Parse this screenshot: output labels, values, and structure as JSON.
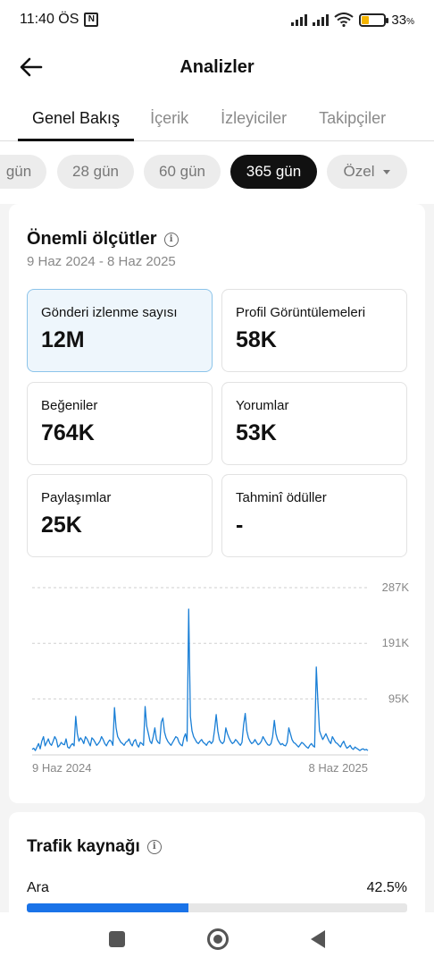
{
  "status_bar": {
    "time": "11:40 ÖS",
    "nfc_glyph": "N",
    "battery": "33",
    "battery_unit": "%"
  },
  "header": {
    "title": "Analizler"
  },
  "tabs": [
    {
      "label": "Genel Bakış",
      "active": true
    },
    {
      "label": "İçerik",
      "active": false
    },
    {
      "label": "İzleyiciler",
      "active": false
    },
    {
      "label": "Takipçiler",
      "active": false
    }
  ],
  "ranges": [
    {
      "label": "gün",
      "active": false
    },
    {
      "label": "28 gün",
      "active": false
    },
    {
      "label": "60 gün",
      "active": false
    },
    {
      "label": "365 gün",
      "active": true
    },
    {
      "label": "Özel",
      "active": false
    }
  ],
  "metrics": {
    "title": "Önemli ölçütler",
    "info_glyph": "i",
    "date_range": "9 Haz 2024 - 8 Haz 2025",
    "items": [
      {
        "label": "Gönderi izlenme sayısı",
        "value": "12M",
        "selected": true
      },
      {
        "label": "Profil Görüntülemeleri",
        "value": "58K",
        "selected": false
      },
      {
        "label": "Beğeniler",
        "value": "764K",
        "selected": false
      },
      {
        "label": "Yorumlar",
        "value": "53K",
        "selected": false
      },
      {
        "label": "Paylaşımlar",
        "value": "25K",
        "selected": false
      },
      {
        "label": "Tahminî ödüller",
        "value": "-",
        "selected": false
      }
    ]
  },
  "chart_data": {
    "type": "line",
    "x_start_label": "9 Haz 2024",
    "x_end_label": "8 Haz 2025",
    "y_ticks": [
      "95K",
      "191K",
      "287K"
    ],
    "ylim": [
      0,
      287000
    ],
    "grid": true,
    "color": "#1a7fd6",
    "values": [
      8000,
      10000,
      6000,
      12000,
      18000,
      9000,
      22000,
      30000,
      14000,
      20000,
      26000,
      18000,
      15000,
      22000,
      30000,
      25000,
      12000,
      15000,
      20000,
      17000,
      16000,
      26000,
      12000,
      10000,
      15000,
      18000,
      14000,
      65000,
      35000,
      22000,
      28000,
      24000,
      18000,
      30000,
      26000,
      20000,
      14000,
      28000,
      25000,
      20000,
      15000,
      18000,
      22000,
      30000,
      25000,
      18000,
      14000,
      20000,
      24000,
      22000,
      15000,
      80000,
      45000,
      30000,
      25000,
      20000,
      18000,
      15000,
      20000,
      22000,
      26000,
      18000,
      14000,
      22000,
      25000,
      16000,
      12000,
      20000,
      18000,
      15000,
      82000,
      48000,
      35000,
      22000,
      18000,
      30000,
      45000,
      25000,
      20000,
      18000,
      55000,
      62000,
      38000,
      28000,
      22000,
      18000,
      15000,
      20000,
      25000,
      30000,
      28000,
      20000,
      16000,
      14000,
      28000,
      35000,
      22000,
      250000,
      65000,
      40000,
      30000,
      25000,
      20000,
      18000,
      22000,
      25000,
      20000,
      18000,
      15000,
      20000,
      22000,
      18000,
      22000,
      42000,
      68000,
      40000,
      25000,
      20000,
      18000,
      22000,
      45000,
      35000,
      28000,
      22000,
      18000,
      20000,
      25000,
      22000,
      18000,
      15000,
      20000,
      50000,
      70000,
      40000,
      28000,
      22000,
      18000,
      20000,
      25000,
      20000,
      16000,
      18000,
      22000,
      30000,
      25000,
      20000,
      16000,
      15000,
      18000,
      30000,
      58000,
      35000,
      25000,
      20000,
      16000,
      18000,
      15000,
      14000,
      20000,
      45000,
      35000,
      25000,
      20000,
      18000,
      15000,
      12000,
      16000,
      20000,
      18000,
      15000,
      12000,
      10000,
      15000,
      18000,
      14000,
      12000,
      150000,
      90000,
      40000,
      32000,
      25000,
      30000,
      35000,
      28000,
      22000,
      18000,
      30000,
      25000,
      20000,
      18000,
      15000,
      12000,
      18000,
      22000,
      15000,
      10000,
      12000,
      15000,
      10000,
      8000,
      12000,
      10000,
      8000,
      6000,
      8000,
      9000,
      7000,
      8000,
      6000
    ]
  },
  "traffic": {
    "title": "Trafik kaynağı",
    "info_glyph": "i",
    "source": "Ara",
    "percent_label": "42.5%",
    "percent": 42.5
  }
}
